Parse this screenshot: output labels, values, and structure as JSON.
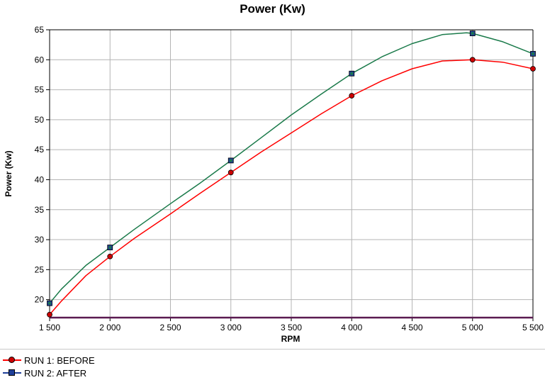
{
  "chart_data": {
    "type": "line",
    "title": "Power (Kw)",
    "xlabel": "RPM",
    "ylabel": "Power (Kw)",
    "xlim": [
      1500,
      5500
    ],
    "ylim": [
      17,
      65
    ],
    "x_ticks": [
      1500,
      2000,
      2500,
      3000,
      3500,
      4000,
      4500,
      5000,
      5500
    ],
    "x_tick_labels": [
      "1 500",
      "2 000",
      "2 500",
      "3 000",
      "3 500",
      "4 000",
      "4 500",
      "5 000",
      "5 500"
    ],
    "y_ticks": [
      20,
      25,
      30,
      35,
      40,
      45,
      50,
      55,
      60,
      65
    ],
    "y_tick_labels": [
      "20",
      "25",
      "30",
      "35",
      "40",
      "45",
      "50",
      "55",
      "60",
      "65"
    ],
    "grid": true,
    "legend_position": "bottom-left",
    "series": [
      {
        "name": "RUN 1: BEFORE",
        "color": "#ff0000",
        "marker": "circle",
        "marker_color": "#cc0000",
        "x": [
          1500,
          1600,
          1800,
          2000,
          2200,
          2500,
          2750,
          3000,
          3250,
          3500,
          3750,
          4000,
          4250,
          4500,
          4750,
          5000,
          5250,
          5500
        ],
        "y": [
          17.5,
          19.8,
          24.0,
          27.2,
          30.2,
          34.3,
          37.8,
          41.2,
          44.6,
          47.8,
          51.0,
          54.0,
          56.5,
          58.5,
          59.8,
          60.0,
          59.6,
          58.5
        ],
        "markers_x": [
          1500,
          2000,
          3000,
          4000,
          5000,
          5500
        ],
        "markers_y": [
          17.5,
          27.2,
          41.2,
          54.0,
          60.0,
          58.5
        ]
      },
      {
        "name": "RUN 2: AFTER",
        "color": "#1a7a4a",
        "marker": "square",
        "marker_color": "#1f3f99",
        "x": [
          1500,
          1600,
          1800,
          2000,
          2200,
          2500,
          2750,
          3000,
          3250,
          3500,
          3750,
          4000,
          4250,
          4500,
          4750,
          4950,
          5000,
          5250,
          5500
        ],
        "y": [
          19.4,
          21.8,
          25.7,
          28.7,
          31.7,
          36.0,
          39.5,
          43.2,
          47.0,
          50.8,
          54.3,
          57.7,
          60.5,
          62.7,
          64.2,
          64.5,
          64.4,
          63.0,
          61.0
        ],
        "markers_x": [
          1500,
          2000,
          3000,
          4000,
          5000,
          5500
        ],
        "markers_y": [
          19.4,
          28.7,
          43.2,
          57.7,
          64.4,
          61.0
        ]
      }
    ]
  },
  "legend": {
    "items": [
      {
        "label": "RUN 1: BEFORE",
        "color": "#cc0000",
        "line_color": "#ff0000",
        "marker": "circle"
      },
      {
        "label": "RUN 2: AFTER",
        "color": "#1f3f99",
        "line_color": "#1f3f99",
        "marker": "square"
      }
    ]
  },
  "colors": {
    "grid": "#b4b4b4",
    "axis": "#000000",
    "baseline": "#5a1a50"
  }
}
